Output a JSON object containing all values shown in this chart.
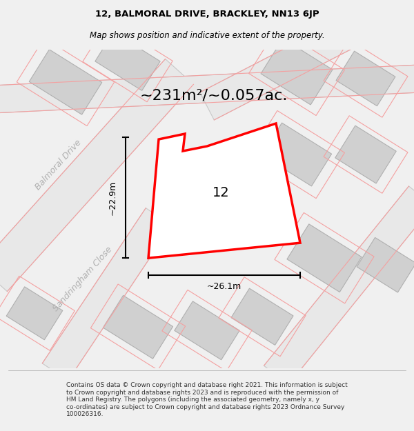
{
  "title_line1": "12, BALMORAL DRIVE, BRACKLEY, NN13 6JP",
  "title_line2": "Map shows position and indicative extent of the property.",
  "area_text": "~231m²/~0.057ac.",
  "label_12": "12",
  "dim_width": "~26.1m",
  "dim_height": "~22.9m",
  "street_balmoral": "Balmoral Drive",
  "street_sandringham": "Sandringham Close",
  "footer_lines": "Contains OS data © Crown copyright and database right 2021. This information is subject\nto Crown copyright and database rights 2023 and is reproduced with the permission of\nHM Land Registry. The polygons (including the associated geometry, namely x, y\nco-ordinates) are subject to Crown copyright and database rights 2023 Ordnance Survey\n100026316.",
  "bg_color": "#f0f0f0",
  "map_bg": "#ffffff",
  "road_fill": "#e8e8e8",
  "building_fill": "#d0d0d0",
  "road_stroke": "#c8c8c8",
  "red_plot": "#ff0000",
  "pink_road_line": "#f4a0a0",
  "title_fontsize": 9.5,
  "subtitle_fontsize": 8.5,
  "area_fontsize": 16,
  "label_fontsize": 14,
  "dim_fontsize": 9,
  "street_fontsize": 9,
  "footer_fontsize": 6.5
}
